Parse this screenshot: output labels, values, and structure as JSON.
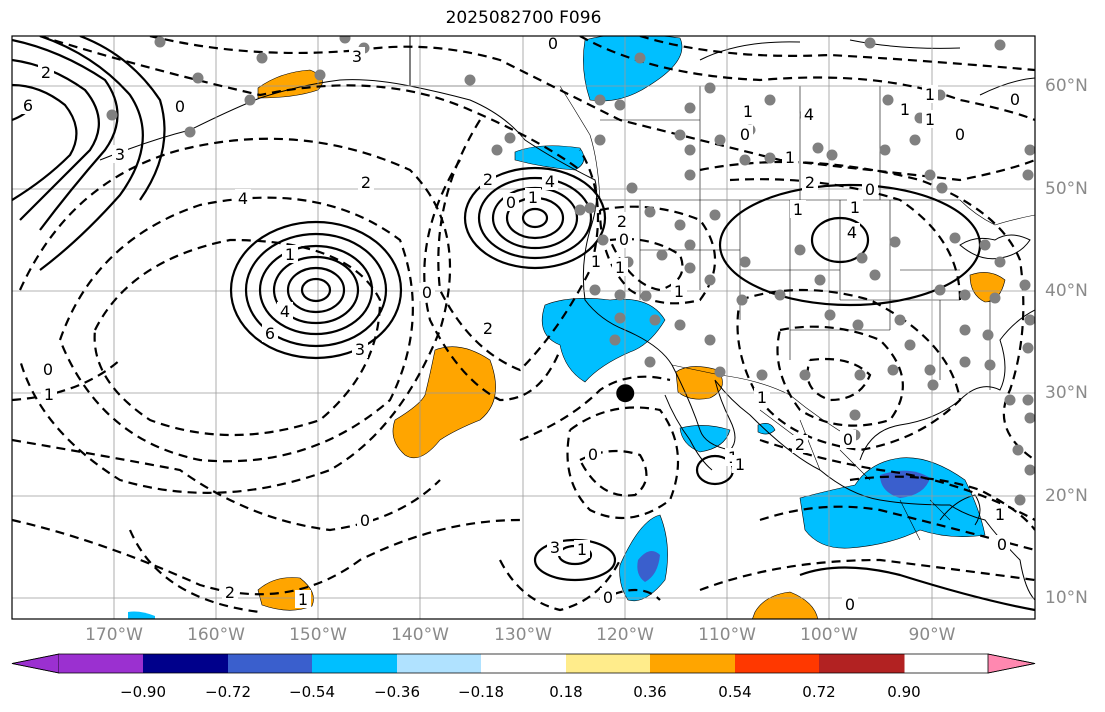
{
  "title": "2025082700 F096",
  "lat_labels": [
    "60°N",
    "50°N",
    "40°N",
    "30°N",
    "20°N",
    "10°N"
  ],
  "lon_labels": [
    "170°W",
    "160°W",
    "150°W",
    "140°W",
    "130°W",
    "120°W",
    "110°W",
    "100°W",
    "90°W"
  ],
  "colorbar": {
    "ticks": [
      "−0.90",
      "−0.72",
      "−0.54",
      "−0.36",
      "−0.18",
      "0.18",
      "0.36",
      "0.54",
      "0.72",
      "0.90"
    ],
    "colors": [
      "#9b30d0",
      "#00008b",
      "#3a5fcd",
      "#00bfff",
      "#b0e2ff",
      "#ffffff",
      "#ffec8b",
      "#ffa500",
      "#ff3800",
      "#b22222",
      "#ff88b0"
    ]
  },
  "contour_labels": [
    "0",
    "3",
    "6",
    "3",
    "4",
    "2",
    "0",
    "2",
    "4",
    "6",
    "3",
    "1",
    "0",
    "2",
    "1",
    "0",
    "0",
    "1",
    "0",
    "2",
    "1",
    "1",
    "1",
    "0",
    "2",
    "4",
    "3",
    "1",
    "0",
    "1",
    "2",
    "4",
    "1",
    "1",
    "0",
    "1",
    "1",
    "0",
    "1",
    "0",
    "2",
    "0",
    "1",
    "0",
    "1",
    "2",
    "1",
    "4",
    "1",
    "0",
    "1",
    "0",
    "1",
    "0"
  ],
  "marker": {
    "lon": -120,
    "lat": 30
  }
}
